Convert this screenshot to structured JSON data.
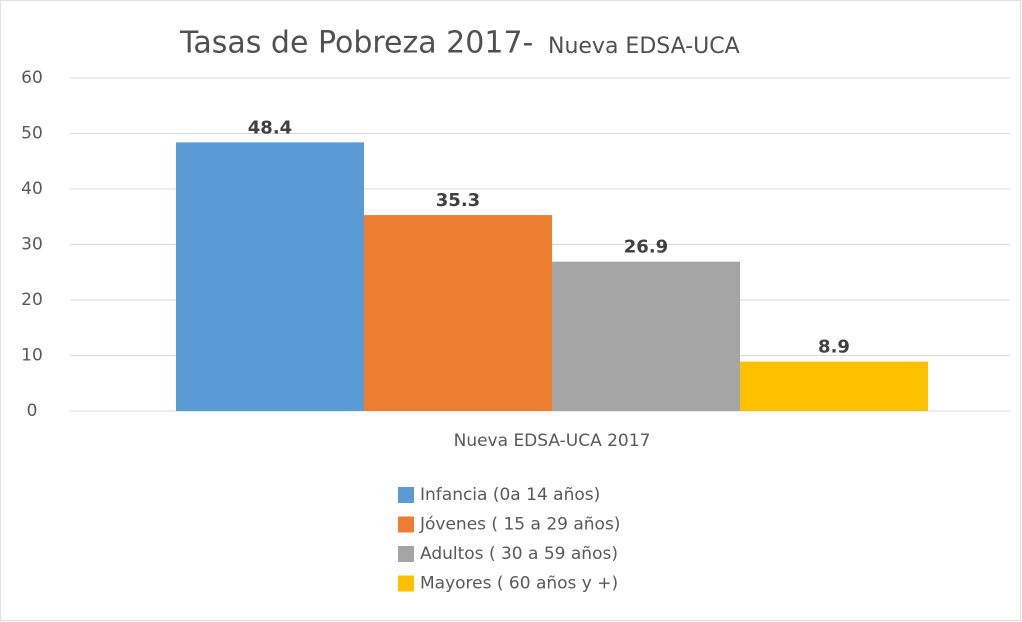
{
  "chart_data": {
    "type": "bar",
    "title": "Tasas de Pobreza 2017-",
    "subtitle": "Nueva EDSA-UCA",
    "categories": [
      "Nueva EDSA-UCA 2017"
    ],
    "series": [
      {
        "name": "Infancia (0a 14 años)",
        "color": "#5b9bd5",
        "values": [
          48.4
        ]
      },
      {
        "name": "Jóvenes ( 15 a 29 años)",
        "color": "#ed7d31",
        "values": [
          35.3
        ]
      },
      {
        "name": "Adultos ( 30 a 59 años)",
        "color": "#a5a5a5",
        "values": [
          26.9
        ]
      },
      {
        "name": "Mayores ( 60 años y +)",
        "color": "#ffc000",
        "values": [
          8.9
        ]
      }
    ],
    "ylim": [
      0,
      60
    ],
    "yticks": [
      0,
      10,
      20,
      30,
      40,
      50,
      60
    ],
    "grid": true,
    "legend": "bottom"
  }
}
